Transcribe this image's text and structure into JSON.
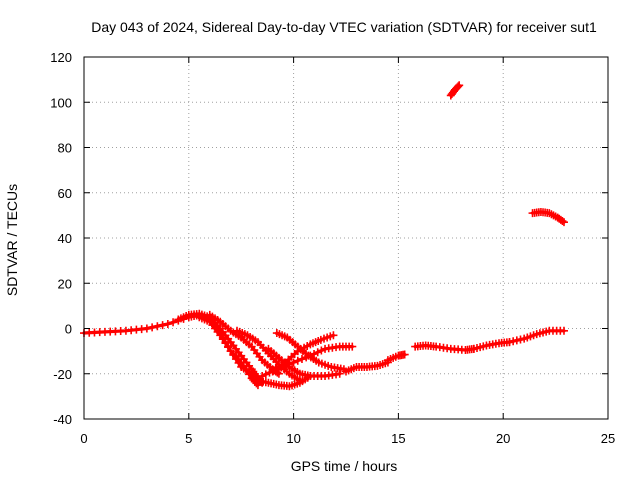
{
  "chart_data": {
    "type": "scatter",
    "title": "Day 043 of 2024, Sidereal Day-to-day VTEC variation (SDTVAR) for receiver sut1",
    "xlabel": "GPS time / hours",
    "ylabel": "SDTVAR / TECUs",
    "xlim": [
      0,
      25
    ],
    "ylim": [
      -40,
      120
    ],
    "xticks": [
      0,
      5,
      10,
      15,
      20,
      25
    ],
    "yticks": [
      -40,
      -20,
      0,
      20,
      40,
      60,
      80,
      100,
      120
    ],
    "xtick_labels": [
      "0",
      "5",
      "10",
      "15",
      "20",
      "25"
    ],
    "ytick_labels": [
      "-40",
      "-20",
      "0",
      "20",
      "40",
      "60",
      "80",
      "100",
      "120"
    ],
    "grid": true,
    "marker": "plus",
    "color": "#ff0000",
    "series": [
      {
        "name": "arc-main",
        "points": [
          [
            0,
            -2
          ],
          [
            1,
            -1.5
          ],
          [
            2,
            -1
          ],
          [
            3,
            0
          ],
          [
            4,
            2
          ],
          [
            5,
            5
          ],
          [
            5.5,
            6
          ],
          [
            6,
            4
          ],
          [
            6.5,
            -2
          ],
          [
            7,
            -10
          ],
          [
            7.5,
            -17
          ],
          [
            8,
            -20
          ]
        ]
      },
      {
        "name": "arc-b",
        "points": [
          [
            4.5,
            4
          ],
          [
            5,
            6
          ],
          [
            5.5,
            6.5
          ],
          [
            6,
            5
          ],
          [
            6.5,
            0
          ],
          [
            7,
            -6
          ],
          [
            7.5,
            -12
          ],
          [
            8,
            -18
          ],
          [
            8.3,
            -22
          ],
          [
            8.5,
            -24
          ]
        ]
      },
      {
        "name": "arc-c",
        "points": [
          [
            5.5,
            5
          ],
          [
            6,
            3
          ],
          [
            6.5,
            -3
          ],
          [
            7,
            -10
          ],
          [
            7.5,
            -15
          ],
          [
            8,
            -22
          ],
          [
            8.3,
            -25
          ]
        ]
      },
      {
        "name": "arc-d",
        "points": [
          [
            6,
            6
          ],
          [
            6.5,
            3
          ],
          [
            7,
            -1
          ],
          [
            7.5,
            -4
          ],
          [
            8,
            -8
          ],
          [
            8.5,
            -14
          ],
          [
            9,
            -18
          ],
          [
            9.3,
            -20
          ]
        ]
      },
      {
        "name": "arc-e",
        "points": [
          [
            7.3,
            -1
          ],
          [
            7.8,
            -3
          ],
          [
            8.3,
            -6
          ],
          [
            8.8,
            -11
          ],
          [
            9.3,
            -16
          ],
          [
            9.8,
            -20
          ],
          [
            10.3,
            -23
          ]
        ]
      },
      {
        "name": "arc-f",
        "points": [
          [
            8.3,
            -23
          ],
          [
            8.8,
            -24
          ],
          [
            9.3,
            -25
          ],
          [
            9.8,
            -25.5
          ],
          [
            10.3,
            -24
          ],
          [
            10.8,
            -21
          ]
        ]
      },
      {
        "name": "arc-g",
        "points": [
          [
            8.8,
            -9
          ],
          [
            9.3,
            -13
          ],
          [
            9.8,
            -17
          ],
          [
            10.3,
            -20
          ],
          [
            10.8,
            -21
          ],
          [
            11.5,
            -21
          ],
          [
            12.2,
            -20
          ]
        ]
      },
      {
        "name": "arc-h",
        "points": [
          [
            9.2,
            -2
          ],
          [
            9.7,
            -4
          ],
          [
            10.2,
            -8
          ],
          [
            10.7,
            -12
          ],
          [
            11.2,
            -15
          ],
          [
            11.8,
            -17
          ],
          [
            12.4,
            -18
          ]
        ]
      },
      {
        "name": "arc-i",
        "points": [
          [
            8.5,
            -21
          ],
          [
            9.2,
            -18
          ],
          [
            10,
            -15
          ],
          [
            10.8,
            -12
          ],
          [
            11.5,
            -9
          ],
          [
            12.2,
            -8
          ],
          [
            12.8,
            -8
          ]
        ]
      },
      {
        "name": "arc-j",
        "points": [
          [
            9,
            -19
          ],
          [
            9.6,
            -15
          ],
          [
            10.2,
            -10
          ],
          [
            10.8,
            -7
          ],
          [
            11.3,
            -5
          ],
          [
            11.9,
            -3
          ]
        ]
      },
      {
        "name": "arc-k",
        "points": [
          [
            12.5,
            -19
          ],
          [
            13,
            -17
          ],
          [
            13.5,
            -17
          ],
          [
            14,
            -16.5
          ],
          [
            14.5,
            -15
          ]
        ]
      },
      {
        "name": "arc-l",
        "points": [
          [
            14.5,
            -14
          ],
          [
            15,
            -12
          ],
          [
            15.3,
            -11.5
          ]
        ]
      },
      {
        "name": "arc-m",
        "points": [
          [
            15.8,
            -8
          ],
          [
            16.3,
            -7.5
          ],
          [
            16.8,
            -8
          ],
          [
            17.5,
            -9
          ],
          [
            18.2,
            -9.5
          ],
          [
            18.6,
            -9
          ]
        ]
      },
      {
        "name": "arc-n",
        "points": [
          [
            18.6,
            -9
          ],
          [
            19.2,
            -7.5
          ],
          [
            19.8,
            -6.5
          ],
          [
            20.3,
            -6
          ]
        ]
      },
      {
        "name": "arc-o",
        "points": [
          [
            20.3,
            -6
          ],
          [
            21,
            -4.5
          ],
          [
            21.6,
            -2.5
          ],
          [
            22.2,
            -1
          ],
          [
            22.9,
            -1
          ]
        ]
      },
      {
        "name": "arc-p",
        "points": [
          [
            17.5,
            103
          ],
          [
            17.7,
            105.5
          ],
          [
            17.9,
            107.5
          ]
        ]
      },
      {
        "name": "arc-q",
        "points": [
          [
            21.4,
            51
          ],
          [
            21.8,
            51.5
          ],
          [
            22.2,
            51
          ],
          [
            22.6,
            49
          ],
          [
            22.9,
            47
          ]
        ]
      }
    ]
  }
}
